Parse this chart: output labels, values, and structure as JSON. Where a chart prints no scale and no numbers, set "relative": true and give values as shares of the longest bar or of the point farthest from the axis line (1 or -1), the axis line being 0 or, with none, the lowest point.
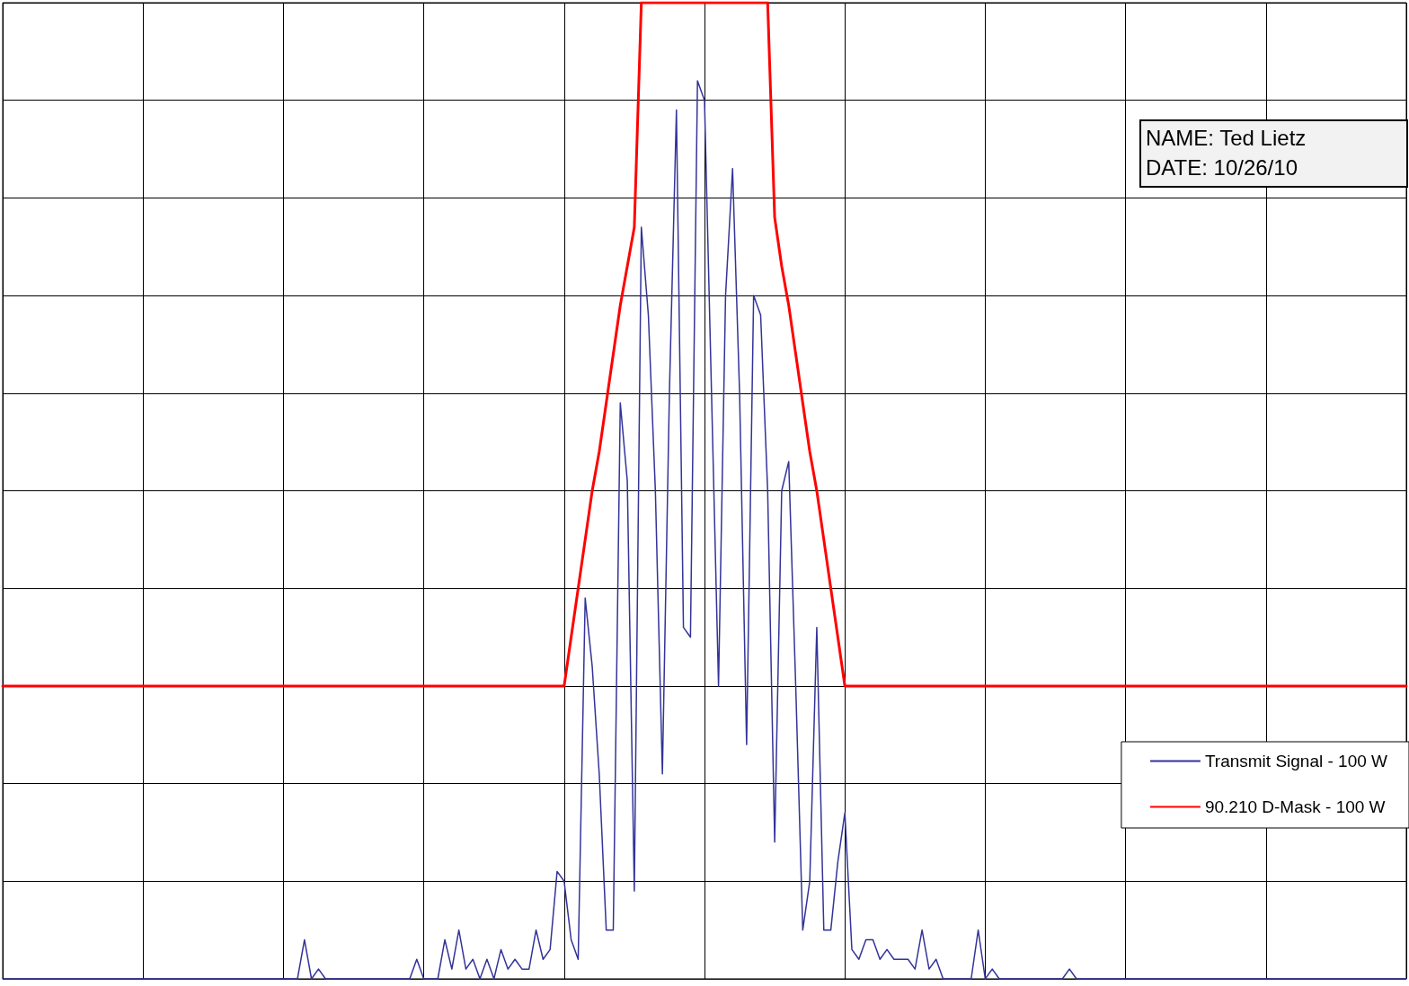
{
  "chart_data": {
    "type": "line",
    "relative": true,
    "grid": true,
    "legend": "bottom right",
    "marker": "none",
    "line_style": "solid",
    "annotations": [
      "NAME: Ted Lietz",
      "DATE: 10/26/10"
    ],
    "categories": [
      null,
      null,
      null,
      null,
      null,
      null,
      null,
      null,
      null,
      null,
      null,
      null,
      null,
      null,
      null,
      null,
      null,
      null,
      null,
      null,
      null,
      null,
      null,
      null,
      null,
      null,
      null,
      null,
      null,
      null,
      null,
      null,
      null,
      null,
      null,
      null,
      null,
      null,
      null,
      null,
      null,
      null,
      null,
      null,
      null,
      null,
      null,
      null,
      null,
      null,
      null,
      null,
      null,
      null,
      null,
      null,
      null,
      null,
      null,
      null,
      null,
      null,
      null,
      null,
      null,
      null,
      null,
      null,
      null,
      null,
      null,
      null,
      null,
      null,
      null,
      null,
      null,
      null,
      null,
      null,
      null,
      null,
      null,
      null,
      null,
      null,
      null,
      null,
      null,
      null,
      null,
      null,
      null,
      null,
      null,
      null,
      null,
      null,
      null,
      null,
      null,
      null,
      null,
      null,
      null,
      null,
      null,
      null,
      null,
      null,
      null,
      null,
      null,
      null,
      null,
      null,
      null,
      null,
      null,
      null,
      null,
      null,
      null,
      null,
      null,
      null,
      null,
      null,
      null,
      null,
      null,
      null,
      null,
      null,
      null,
      null,
      null,
      null,
      null,
      null,
      null,
      null,
      null,
      null,
      null,
      null,
      null,
      null,
      null,
      null,
      null,
      null,
      null,
      null,
      null,
      null,
      null,
      null,
      null,
      null,
      null,
      null,
      null,
      null,
      null,
      null,
      null,
      null,
      null,
      null,
      null,
      null,
      null,
      null,
      null,
      null,
      null,
      null,
      null,
      null,
      null,
      null,
      null,
      null,
      null,
      null,
      null,
      null,
      null,
      null,
      null,
      null,
      null,
      null,
      null,
      null,
      null,
      null,
      null,
      null,
      null
    ],
    "series": [
      {
        "name": "Transmit Signal - 100 W",
        "color": "#333399",
        "values": [
          0,
          0,
          0,
          0,
          0,
          0,
          0,
          0,
          0,
          0,
          0,
          0,
          0,
          0,
          0,
          0,
          0,
          0,
          0,
          0,
          0,
          0,
          0,
          0,
          0,
          0,
          0,
          0,
          0,
          0,
          0,
          0,
          0,
          0,
          0,
          0,
          0,
          0,
          0,
          0,
          0,
          0,
          0,
          0.04,
          0,
          0.01,
          0,
          0,
          0,
          0,
          0,
          0,
          0,
          0,
          0,
          0,
          0,
          0,
          0,
          0.02,
          0,
          0,
          0,
          0.04,
          0.01,
          0.05,
          0.01,
          0.02,
          0,
          0.02,
          0,
          0.03,
          0.01,
          0.02,
          0.01,
          0.01,
          0.05,
          0.02,
          0.03,
          0.11,
          0.1,
          0.04,
          0.02,
          0.39,
          0.32,
          0.21,
          0.05,
          0.05,
          0.59,
          0.51,
          0.09,
          0.77,
          0.68,
          0.5,
          0.21,
          0.6,
          0.89,
          0.36,
          0.35,
          0.92,
          0.9,
          0.6,
          0.3,
          0.7,
          0.83,
          0.6,
          0.24,
          0.7,
          0.68,
          0.5,
          0.14,
          0.5,
          0.53,
          0.3,
          0.05,
          0.1,
          0.36,
          0.05,
          0.05,
          0.12,
          0.17,
          0.03,
          0.02,
          0.04,
          0.04,
          0.02,
          0.03,
          0.02,
          0.02,
          0.02,
          0.01,
          0.05,
          0.01,
          0.02,
          0,
          0,
          0,
          0,
          0,
          0.05,
          0,
          0.01,
          0,
          0,
          0,
          0,
          0,
          0,
          0,
          0,
          0,
          0,
          0.01,
          0,
          0,
          0,
          0,
          0,
          0,
          0,
          0,
          0,
          0,
          0,
          0,
          0,
          0,
          0,
          0,
          0,
          0,
          0,
          0,
          0,
          0,
          0,
          0,
          0,
          0,
          0,
          0,
          0,
          0,
          0,
          0,
          0,
          0,
          0,
          0,
          0,
          0,
          0,
          0,
          0,
          0,
          0,
          0,
          0,
          0,
          0,
          0
        ]
      },
      {
        "name": "90.210 D-Mask - 100 W",
        "color": "#ff0000",
        "values": [
          0.3,
          0.3,
          0.3,
          0.3,
          0.3,
          0.3,
          0.3,
          0.3,
          0.3,
          0.3,
          0.3,
          0.3,
          0.3,
          0.3,
          0.3,
          0.3,
          0.3,
          0.3,
          0.3,
          0.3,
          0.3,
          0.3,
          0.3,
          0.3,
          0.3,
          0.3,
          0.3,
          0.3,
          0.3,
          0.3,
          0.3,
          0.3,
          0.3,
          0.3,
          0.3,
          0.3,
          0.3,
          0.3,
          0.3,
          0.3,
          0.3,
          0.3,
          0.3,
          0.3,
          0.3,
          0.3,
          0.3,
          0.3,
          0.3,
          0.3,
          0.3,
          0.3,
          0.3,
          0.3,
          0.3,
          0.3,
          0.3,
          0.3,
          0.3,
          0.3,
          0.3,
          0.3,
          0.3,
          0.3,
          0.3,
          0.3,
          0.3,
          0.3,
          0.3,
          0.3,
          0.3,
          0.3,
          0.3,
          0.3,
          0.3,
          0.3,
          0.3,
          0.3,
          0.3,
          0.3,
          0.3,
          0.35,
          0.4,
          0.45,
          0.5,
          0.54,
          0.59,
          0.64,
          0.69,
          0.73,
          0.77,
          1,
          1,
          1,
          1,
          1,
          1,
          1,
          1,
          1,
          1,
          1,
          1,
          1,
          1,
          1,
          1,
          1,
          1,
          1,
          0.78,
          0.73,
          0.69,
          0.64,
          0.59,
          0.54,
          0.5,
          0.45,
          0.4,
          0.35,
          0.3,
          0.3,
          0.3,
          0.3,
          0.3,
          0.3,
          0.3,
          0.3,
          0.3,
          0.3,
          0.3,
          0.3,
          0.3,
          0.3,
          0.3,
          0.3,
          0.3,
          0.3,
          0.3,
          0.3,
          0.3,
          0.3,
          0.3,
          0.3,
          0.3,
          0.3,
          0.3,
          0.3,
          0.3,
          0.3,
          0.3,
          0.3,
          0.3,
          0.3,
          0.3,
          0.3,
          0.3,
          0.3,
          0.3,
          0.3,
          0.3,
          0.3,
          0.3,
          0.3,
          0.3,
          0.3,
          0.3,
          0.3,
          0.3,
          0.3,
          0.3,
          0.3,
          0.3,
          0.3,
          0.3,
          0.3,
          0.3,
          0.3,
          0.3,
          0.3,
          0.3,
          0.3,
          0.3,
          0.3,
          0.3,
          0.3,
          0.3,
          0.3,
          0.3,
          0.3,
          0.3,
          0.3,
          0.3,
          0.3,
          0.3,
          0.3,
          0.3,
          0.3,
          0.3,
          0.3,
          0.3
        ]
      }
    ]
  }
}
